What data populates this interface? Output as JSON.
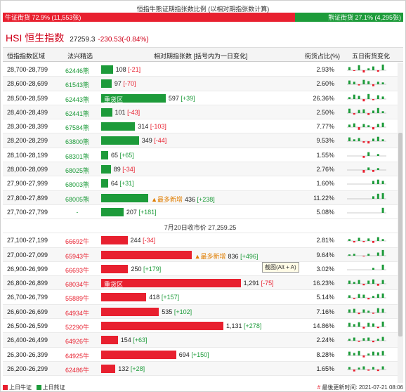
{
  "top_title": "恒指牛熊证期指张数比例 (以相对期指张数计算)",
  "ratio": {
    "bull_label": "牛证街货 72.9% (11,553张)",
    "bull_fraction": 0.729,
    "bear_label": "熊证街货 27.1% (4,295张)"
  },
  "hsi": {
    "name": "HSI 恒生指数",
    "price": "27259.3",
    "change": "-230.53(-0.84%)"
  },
  "header": {
    "range": "恒指指数区域",
    "code": "法兴精选",
    "contracts": "相对期指张数 [括号内为一日变化]",
    "share": "街货占比(%)",
    "five_day": "五日街货变化"
  },
  "colors": {
    "bull": "#e8202f",
    "bear": "#1d9b3a"
  },
  "max_contracts": 1300,
  "bear_rows": [
    {
      "range": "28,700-28,799",
      "code": "62446熊",
      "value": 108,
      "value_text": "108",
      "change": "[-21]",
      "change_sign": "neg",
      "share": "2.93%",
      "mini": [
        0.5,
        -0.2,
        0.8,
        -0.6,
        0.3,
        0.6,
        -0.4,
        0.9
      ]
    },
    {
      "range": "28,600-28,699",
      "code": "61543熊",
      "value": 97,
      "value_text": "97",
      "change": "[-70]",
      "change_sign": "neg",
      "share": "2.60%",
      "mini": [
        0.6,
        0.4,
        -0.3,
        0.7,
        0.5,
        -0.5,
        0.4,
        0.3
      ]
    },
    {
      "range": "28,500-28,599",
      "code": "62443熊",
      "value": 597,
      "value_text": "597",
      "change": "[+39]",
      "change_sign": "pos",
      "share": "26.36%",
      "label": "重货区",
      "mini": [
        0.3,
        0.7,
        0.5,
        -0.6,
        0.8,
        -0.3,
        0.6,
        0.4
      ]
    },
    {
      "range": "28,400-28,499",
      "code": "62441熊",
      "value": 101,
      "value_text": "101",
      "change": "[-43]",
      "change_sign": "neg",
      "share": "2.50%",
      "mini": [
        0.7,
        -0.4,
        0.5,
        0.6,
        -0.5,
        0.4,
        0.8,
        0.3
      ]
    },
    {
      "range": "28,300-28,399",
      "code": "67584熊",
      "value": 314,
      "value_text": "314",
      "change": "[-103]",
      "change_sign": "neg",
      "share": "7.77%",
      "mini": [
        0.4,
        0.6,
        -0.7,
        0.5,
        0.3,
        -0.6,
        0.5,
        0.7
      ]
    },
    {
      "range": "28,200-28,299",
      "code": "63800熊",
      "value": 349,
      "value_text": "349",
      "change": "[-44]",
      "change_sign": "neg",
      "share": "9.53%",
      "mini": [
        0.6,
        0.3,
        0.5,
        -0.4,
        -0.6,
        0.4,
        0.7,
        0.3
      ]
    },
    {
      "range": "28,100-28,199",
      "code": "68301熊",
      "value": 65,
      "value_text": "65",
      "change": "[+65]",
      "change_sign": "pos",
      "share": "1.55%",
      "mini": [
        0.0,
        0.0,
        0.0,
        -0.5,
        0.6,
        0.0,
        0.3,
        0.0
      ]
    },
    {
      "range": "28,000-28,099",
      "code": "68025熊",
      "value": 89,
      "value_text": "89",
      "change": "[-34]",
      "change_sign": "neg",
      "share": "2.76%",
      "mini": [
        0.0,
        0.0,
        0.0,
        -0.7,
        0.4,
        -0.5,
        0.3,
        0.0
      ]
    },
    {
      "range": "27,900-27,999",
      "code": "68003熊",
      "value": 64,
      "value_text": "64",
      "change": "[+31]",
      "change_sign": "pos",
      "share": "1.60%",
      "mini": [
        0.0,
        0.0,
        0.0,
        0.0,
        0.0,
        0.5,
        0.7,
        0.5
      ]
    },
    {
      "range": "27,800-27,899",
      "code": "68005熊",
      "value": 436,
      "value_text": "436",
      "change": "[+238]",
      "change_sign": "pos",
      "share": "11.22%",
      "tag": "▲最多新增",
      "mini": [
        0.0,
        0.0,
        0.0,
        0.0,
        0.0,
        0.4,
        0.8,
        0.9
      ]
    },
    {
      "range": "27,700-27,799",
      "code": "-",
      "value": 207,
      "value_text": "207",
      "change": "[+181]",
      "change_sign": "pos",
      "share": "5.08%",
      "mini": [
        0.0,
        0.0,
        0.0,
        0.0,
        0.0,
        0.0,
        0.0,
        0.8
      ]
    }
  ],
  "midline": "7月20日收市价 27,259.25",
  "bull_rows": [
    {
      "range": "27,100-27,199",
      "code": "66692牛",
      "value": 244,
      "value_text": "244",
      "change": "[-34]",
      "change_sign": "neg",
      "share": "2.81%",
      "mini": [
        0.3,
        -0.4,
        0.5,
        -0.3,
        0.4,
        -0.5,
        0.6,
        0.3
      ]
    },
    {
      "range": "27,000-27,099",
      "code": "65943牛",
      "value": 836,
      "value_text": "836",
      "change": "[+496]",
      "change_sign": "pos",
      "share": "9.64%",
      "tag": "▲最多新增",
      "mini": [
        0.2,
        0.3,
        0.0,
        -0.2,
        0.3,
        0.0,
        0.5,
        0.9
      ]
    },
    {
      "range": "26,900-26,999",
      "code": "66693牛",
      "value": 250,
      "value_text": "250",
      "change": "[+179]",
      "change_sign": "pos",
      "share": "3.02%",
      "mini": [
        0.0,
        0.0,
        0.0,
        0.0,
        0.0,
        0.3,
        0.0,
        0.8
      ]
    },
    {
      "range": "26,800-26,899",
      "code": "68034牛",
      "value": 1291,
      "value_text": "1,291",
      "change": "[-75]",
      "change_sign": "neg",
      "share": "16.23%",
      "label": "重货区",
      "mini": [
        0.5,
        0.3,
        0.6,
        -0.4,
        0.5,
        0.7,
        -0.5,
        0.6
      ]
    },
    {
      "range": "26,700-26,799",
      "code": "55889牛",
      "value": 418,
      "value_text": "418",
      "change": "[+157]",
      "change_sign": "pos",
      "share": "5.14%",
      "mini": [
        0.4,
        -0.3,
        0.6,
        0.5,
        -0.4,
        0.3,
        0.6,
        0.7
      ]
    },
    {
      "range": "26,600-26,699",
      "code": "64934牛",
      "value": 535,
      "value_text": "535",
      "change": "[+102]",
      "change_sign": "pos",
      "share": "7.16%",
      "mini": [
        0.5,
        0.6,
        -0.4,
        0.5,
        0.3,
        -0.3,
        0.7,
        0.6
      ]
    },
    {
      "range": "26,500-26,599",
      "code": "52290牛",
      "value": 1131,
      "value_text": "1,131",
      "change": "[+278]",
      "change_sign": "pos",
      "share": "14.86%",
      "mini": [
        0.6,
        0.4,
        0.7,
        -0.5,
        0.6,
        0.5,
        -0.4,
        0.8
      ]
    },
    {
      "range": "26,400-26,499",
      "code": "64926牛",
      "value": 154,
      "value_text": "154",
      "change": "[+63]",
      "change_sign": "pos",
      "share": "2.24%",
      "mini": [
        0.3,
        0.5,
        -0.3,
        0.4,
        0.5,
        -0.4,
        0.3,
        0.6
      ]
    },
    {
      "range": "26,300-26,399",
      "code": "64925牛",
      "value": 694,
      "value_text": "694",
      "change": "[+150]",
      "change_sign": "pos",
      "share": "8.28%",
      "mini": [
        0.6,
        0.4,
        0.7,
        -0.5,
        0.3,
        0.6,
        0.5,
        0.7
      ]
    },
    {
      "range": "26,200-26,299",
      "code": "62486牛",
      "value": 132,
      "value_text": "132",
      "change": "[+28]",
      "change_sign": "pos",
      "share": "1.65%",
      "mini": [
        0.4,
        -0.5,
        0.3,
        0.5,
        -0.3,
        0.4,
        -0.4,
        0.5
      ]
    }
  ],
  "tooltip": "截图(Alt + A)",
  "footer": {
    "legend_bull": "上日牛证",
    "legend_bear": "上日熊证",
    "update_prefix": "#",
    "update_text": "最後更新时间: 2021-07-21 08:06"
  }
}
